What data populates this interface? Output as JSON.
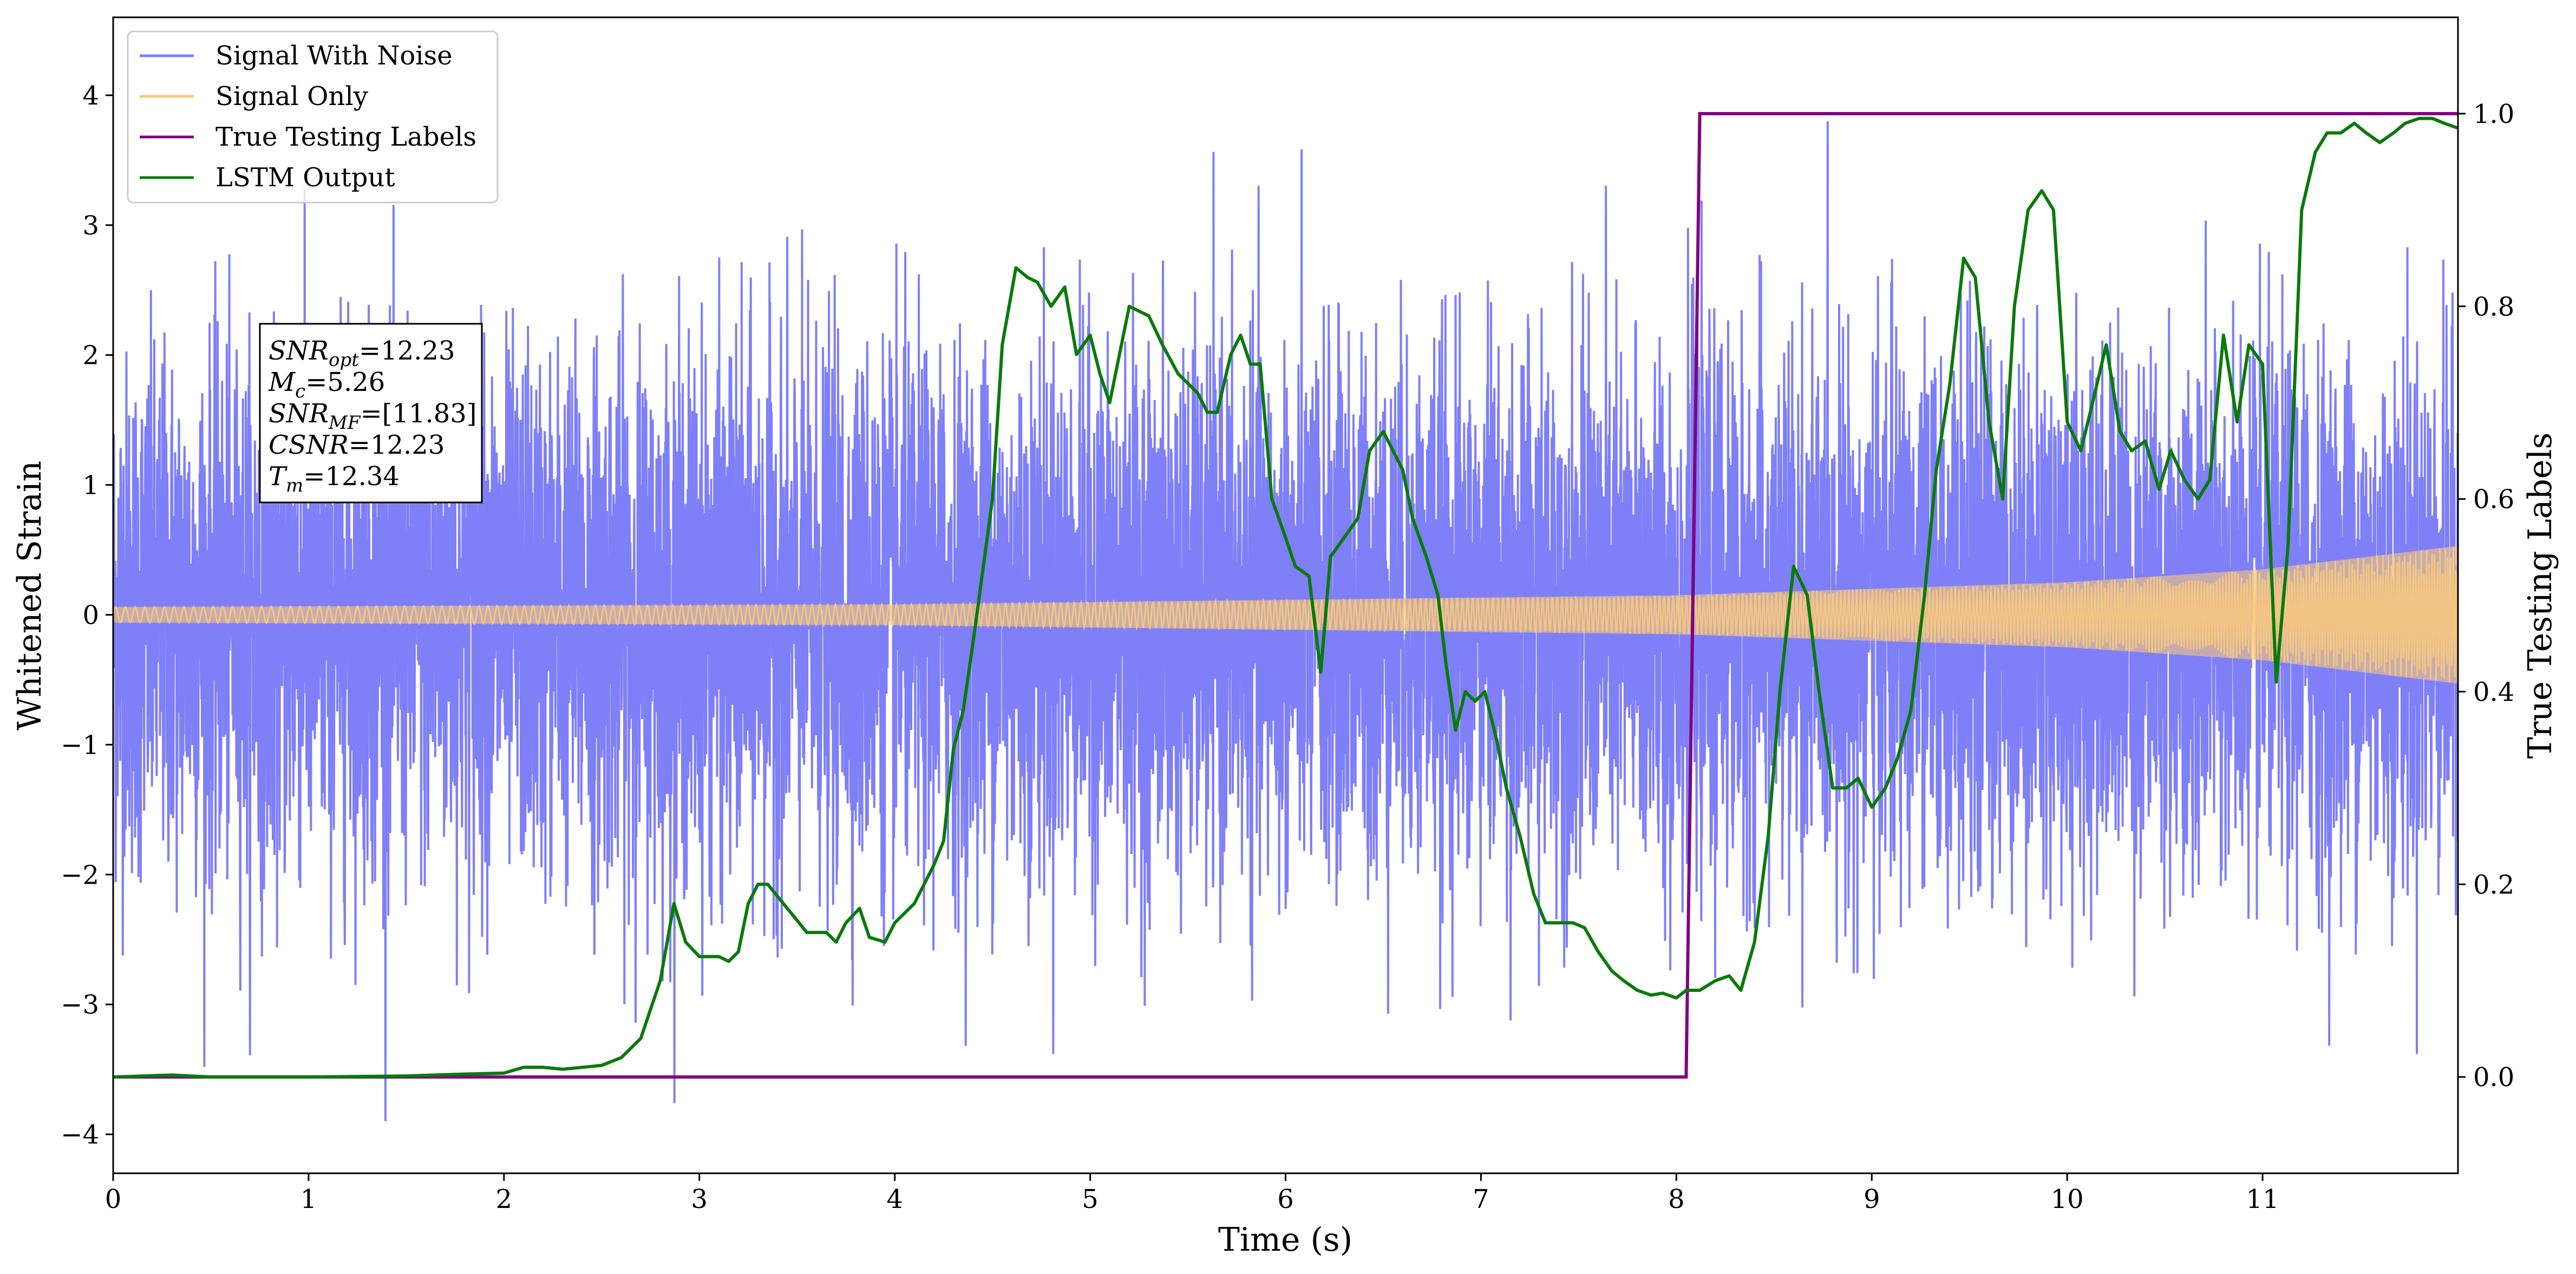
{
  "chart_data": {
    "type": "line",
    "xlabel": "Time (s)",
    "ylabel_left": "Whitened Strain",
    "ylabel_right": "True Testing Labels",
    "xlim": [
      0,
      12
    ],
    "ylim_left": [
      -4.3,
      4.6
    ],
    "ylim_right": [
      -0.1,
      1.1
    ],
    "x_ticks": [
      0,
      1,
      2,
      3,
      4,
      5,
      6,
      7,
      8,
      9,
      10,
      11
    ],
    "y_ticks_left": [
      -4,
      -3,
      -2,
      -1,
      0,
      1,
      2,
      3,
      4
    ],
    "y_ticks_left_labels": [
      "−4",
      "−3",
      "−2",
      "−1",
      "0",
      "1",
      "2",
      "3",
      "4"
    ],
    "y_ticks_right": [
      0.0,
      0.2,
      0.4,
      0.6,
      0.8,
      1.0
    ],
    "y_ticks_right_labels": [
      "0.0",
      "0.2",
      "0.4",
      "0.6",
      "0.8",
      "1.0"
    ],
    "grid": false,
    "legend_placement": "top-left",
    "legend": [
      {
        "name": "Signal With Noise",
        "color": "#7f7ff7"
      },
      {
        "name": "Signal Only",
        "color": "#f9c97c"
      },
      {
        "name": "True Testing Labels",
        "color": "#800080"
      },
      {
        "name": "LSTM Output",
        "color": "#0a7a0a"
      }
    ],
    "annotation": {
      "lines": [
        {
          "main": "SNR",
          "sub": "opt",
          "rest": "=12.23"
        },
        {
          "main": "M",
          "sub": "c",
          "rest": "=5.26"
        },
        {
          "main": "SNR",
          "sub": "MF",
          "rest": "=[11.83]"
        },
        {
          "main": "CSNR",
          "sub": "",
          "rest": "=12.23"
        },
        {
          "main": "T",
          "sub": "m",
          "rest": "=12.34"
        }
      ]
    },
    "series": [
      {
        "name": "Signal With Noise",
        "axis": "left",
        "style": "dense-noise",
        "noise_sigma": 1.0,
        "typical_range": [
          -2.2,
          2.2
        ],
        "extremes": [
          -3.9,
          3.8
        ]
      },
      {
        "name": "Signal Only",
        "axis": "left",
        "style": "chirp",
        "amplitude": [
          [
            0,
            0.06
          ],
          [
            4,
            0.08
          ],
          [
            8,
            0.15
          ],
          [
            10,
            0.25
          ],
          [
            11,
            0.35
          ],
          [
            12,
            0.53
          ]
        ]
      },
      {
        "name": "True Testing Labels",
        "axis": "right",
        "x": [
          0,
          8.05,
          8.12,
          12
        ],
        "y": [
          0,
          0,
          1,
          1
        ]
      },
      {
        "name": "LSTM Output",
        "axis": "right",
        "x": [
          0,
          0.3,
          0.5,
          1.0,
          1.5,
          1.8,
          2.0,
          2.1,
          2.2,
          2.3,
          2.4,
          2.5,
          2.6,
          2.7,
          2.75,
          2.8,
          2.87,
          2.93,
          3.0,
          3.1,
          3.15,
          3.2,
          3.25,
          3.3,
          3.35,
          3.45,
          3.55,
          3.65,
          3.7,
          3.75,
          3.82,
          3.87,
          3.95,
          4.0,
          4.1,
          4.15,
          4.2,
          4.25,
          4.3,
          4.35,
          4.4,
          4.5,
          4.55,
          4.62,
          4.68,
          4.73,
          4.8,
          4.87,
          4.93,
          5.0,
          5.05,
          5.1,
          5.15,
          5.2,
          5.3,
          5.37,
          5.45,
          5.55,
          5.6,
          5.65,
          5.72,
          5.77,
          5.82,
          5.87,
          5.93,
          6.0,
          6.05,
          6.12,
          6.18,
          6.23,
          6.3,
          6.37,
          6.43,
          6.5,
          6.55,
          6.6,
          6.65,
          6.72,
          6.78,
          6.82,
          6.87,
          6.92,
          6.97,
          7.02,
          7.08,
          7.13,
          7.2,
          7.27,
          7.33,
          7.4,
          7.47,
          7.53,
          7.6,
          7.67,
          7.73,
          7.8,
          7.87,
          7.93,
          8.0,
          8.05,
          8.12,
          8.2,
          8.27,
          8.33,
          8.4,
          8.47,
          8.53,
          8.6,
          8.67,
          8.73,
          8.8,
          8.87,
          8.93,
          9.0,
          9.07,
          9.13,
          9.2,
          9.27,
          9.33,
          9.4,
          9.47,
          9.53,
          9.6,
          9.67,
          9.73,
          9.8,
          9.87,
          9.93,
          10.0,
          10.07,
          10.13,
          10.2,
          10.27,
          10.33,
          10.4,
          10.47,
          10.53,
          10.6,
          10.67,
          10.73,
          10.8,
          10.87,
          10.93,
          11.0,
          11.07,
          11.13,
          11.2,
          11.27,
          11.33,
          11.4,
          11.47,
          11.53,
          11.6,
          11.67,
          11.73,
          11.8,
          11.87,
          11.93,
          12.0
        ],
        "y": [
          0.0,
          0.002,
          0.0,
          0.0,
          0.001,
          0.003,
          0.004,
          0.01,
          0.01,
          0.008,
          0.01,
          0.012,
          0.02,
          0.04,
          0.07,
          0.1,
          0.18,
          0.14,
          0.125,
          0.125,
          0.12,
          0.13,
          0.18,
          0.2,
          0.2,
          0.175,
          0.15,
          0.15,
          0.14,
          0.16,
          0.175,
          0.145,
          0.14,
          0.16,
          0.18,
          0.2,
          0.22,
          0.245,
          0.34,
          0.38,
          0.45,
          0.6,
          0.76,
          0.84,
          0.83,
          0.825,
          0.8,
          0.82,
          0.75,
          0.77,
          0.73,
          0.7,
          0.75,
          0.8,
          0.79,
          0.76,
          0.73,
          0.71,
          0.69,
          0.69,
          0.75,
          0.77,
          0.74,
          0.74,
          0.6,
          0.56,
          0.53,
          0.52,
          0.42,
          0.54,
          0.56,
          0.58,
          0.65,
          0.67,
          0.65,
          0.63,
          0.58,
          0.54,
          0.5,
          0.43,
          0.36,
          0.4,
          0.39,
          0.4,
          0.35,
          0.3,
          0.25,
          0.19,
          0.16,
          0.16,
          0.16,
          0.155,
          0.13,
          0.11,
          0.1,
          0.09,
          0.085,
          0.087,
          0.082,
          0.09,
          0.09,
          0.1,
          0.105,
          0.09,
          0.14,
          0.25,
          0.4,
          0.53,
          0.5,
          0.4,
          0.3,
          0.3,
          0.31,
          0.28,
          0.3,
          0.33,
          0.38,
          0.5,
          0.63,
          0.72,
          0.85,
          0.83,
          0.68,
          0.6,
          0.8,
          0.9,
          0.92,
          0.9,
          0.68,
          0.65,
          0.7,
          0.76,
          0.67,
          0.65,
          0.66,
          0.61,
          0.65,
          0.62,
          0.6,
          0.62,
          0.77,
          0.68,
          0.76,
          0.74,
          0.41,
          0.55,
          0.9,
          0.96,
          0.98,
          0.98,
          0.99,
          0.98,
          0.97,
          0.98,
          0.99,
          0.995,
          0.995,
          0.99,
          0.985
        ]
      }
    ]
  }
}
